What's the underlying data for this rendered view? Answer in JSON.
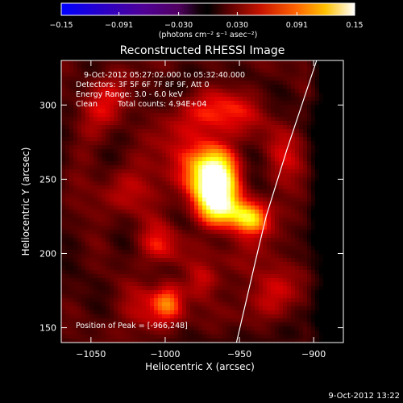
{
  "chart_data": {
    "type": "heatmap",
    "title": "Reconstructed RHESSI Image",
    "xlabel": "Heliocentric X (arcsec)",
    "ylabel": "Heliocentric Y (arcsec)",
    "xlim": [
      -1070,
      -880
    ],
    "ylim": [
      140,
      330
    ],
    "x_ticks": [
      -1050,
      -1000,
      -950,
      -900
    ],
    "x_tick_labels": [
      "−1050",
      "−1000",
      "−950",
      "−900"
    ],
    "y_ticks": [
      150,
      200,
      250,
      300
    ],
    "y_tick_labels": [
      "150",
      "200",
      "250",
      "300"
    ],
    "colorbar": {
      "range": [
        -0.15,
        0.15
      ],
      "ticks": [
        -0.15,
        -0.091,
        -0.03,
        0.03,
        0.091,
        0.15
      ],
      "tick_labels": [
        "−0.15",
        "−0.091",
        "−0.030",
        "0.030",
        "0.091",
        "0.15"
      ],
      "units_label": "(photons cm⁻² s⁻¹ asec⁻²)",
      "colormap": "hot-blue (IDL)"
    },
    "annotations": {
      "time_range": "9-Oct-2012 05:27:02.000 to 05:32:40.000",
      "detectors": "Detectors: 3F 5F 6F 7F 8F 9F, Att 0",
      "energy": "Energy Range: 3.0 - 6.0 keV",
      "method": "Clean",
      "total_counts": "Total counts: 4.94E+04",
      "peak": "Position of Peak = [-966,248]"
    },
    "peak": {
      "x": -966,
      "y": 248
    },
    "sources": [
      {
        "x": -966,
        "y": 248,
        "sx": 10,
        "sy": 15,
        "amp": 1.0
      },
      {
        "x": -943,
        "y": 224,
        "sx": 9,
        "sy": 8,
        "amp": 0.72
      },
      {
        "x": -962,
        "y": 228,
        "sx": 11,
        "sy": 9,
        "amp": 0.45
      },
      {
        "x": -985,
        "y": 262,
        "sx": 14,
        "sy": 18,
        "amp": 0.35
      },
      {
        "x": -1005,
        "y": 205,
        "sx": 10,
        "sy": 10,
        "amp": 0.3
      },
      {
        "x": -998,
        "y": 168,
        "sx": 7,
        "sy": 9,
        "amp": 0.4
      },
      {
        "x": -975,
        "y": 180,
        "sx": 8,
        "sy": 9,
        "amp": 0.33
      },
      {
        "x": -1030,
        "y": 240,
        "sx": 14,
        "sy": 12,
        "amp": 0.22
      },
      {
        "x": -930,
        "y": 180,
        "sx": 14,
        "sy": 14,
        "amp": 0.26
      },
      {
        "x": -1040,
        "y": 300,
        "sx": 14,
        "sy": 14,
        "amp": 0.24
      },
      {
        "x": -1015,
        "y": 160,
        "sx": 12,
        "sy": 12,
        "amp": 0.24
      },
      {
        "x": -960,
        "y": 295,
        "sx": 16,
        "sy": 14,
        "amp": 0.3
      },
      {
        "x": -918,
        "y": 265,
        "sx": 12,
        "sy": 14,
        "amp": 0.2
      }
    ],
    "limb_curve": [
      {
        "x": -952,
        "y": 140
      },
      {
        "x": -938,
        "y": 200
      },
      {
        "x": -932,
        "y": 225
      },
      {
        "x": -918,
        "y": 270
      },
      {
        "x": -897,
        "y": 333
      }
    ]
  },
  "footer": {
    "timestamp": "9-Oct-2012 13:22"
  }
}
